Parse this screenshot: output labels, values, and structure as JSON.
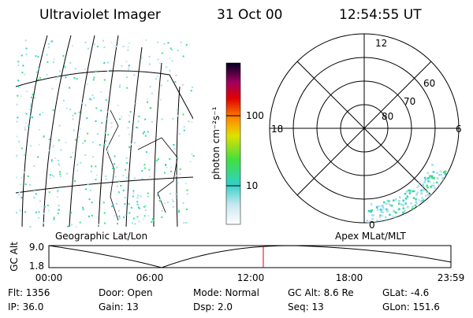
{
  "header": {
    "instrument": "Ultraviolet Imager",
    "date": "31 Oct 00",
    "time": "12:54:55 UT"
  },
  "colorbar": {
    "label": "photon cm⁻²s⁻¹",
    "ticks": [
      "100",
      "10"
    ]
  },
  "polar": {
    "mlt": [
      "12",
      "18",
      "6",
      "0"
    ],
    "mlat": [
      "60",
      "70",
      "80"
    ]
  },
  "altitude_plot": {
    "left_label": "Geographic Lat/Lon",
    "right_label": "Apex MLat/MLT",
    "axis_label": "GC Alt",
    "yticks": [
      "9.0",
      "1.8"
    ],
    "xticks": [
      "00:00",
      "06:00",
      "12:00",
      "18:00",
      "23:59"
    ]
  },
  "info": [
    [
      "Flt: 1356",
      "Door: Open",
      "Mode: Normal",
      "GC Alt: 8.6 Re",
      "GLat:  -4.6"
    ],
    [
      "IP: 36.0",
      "Gain: 13",
      "Dsp:    2.0",
      "Seq: 13",
      "GLon: 151.6"
    ]
  ]
}
